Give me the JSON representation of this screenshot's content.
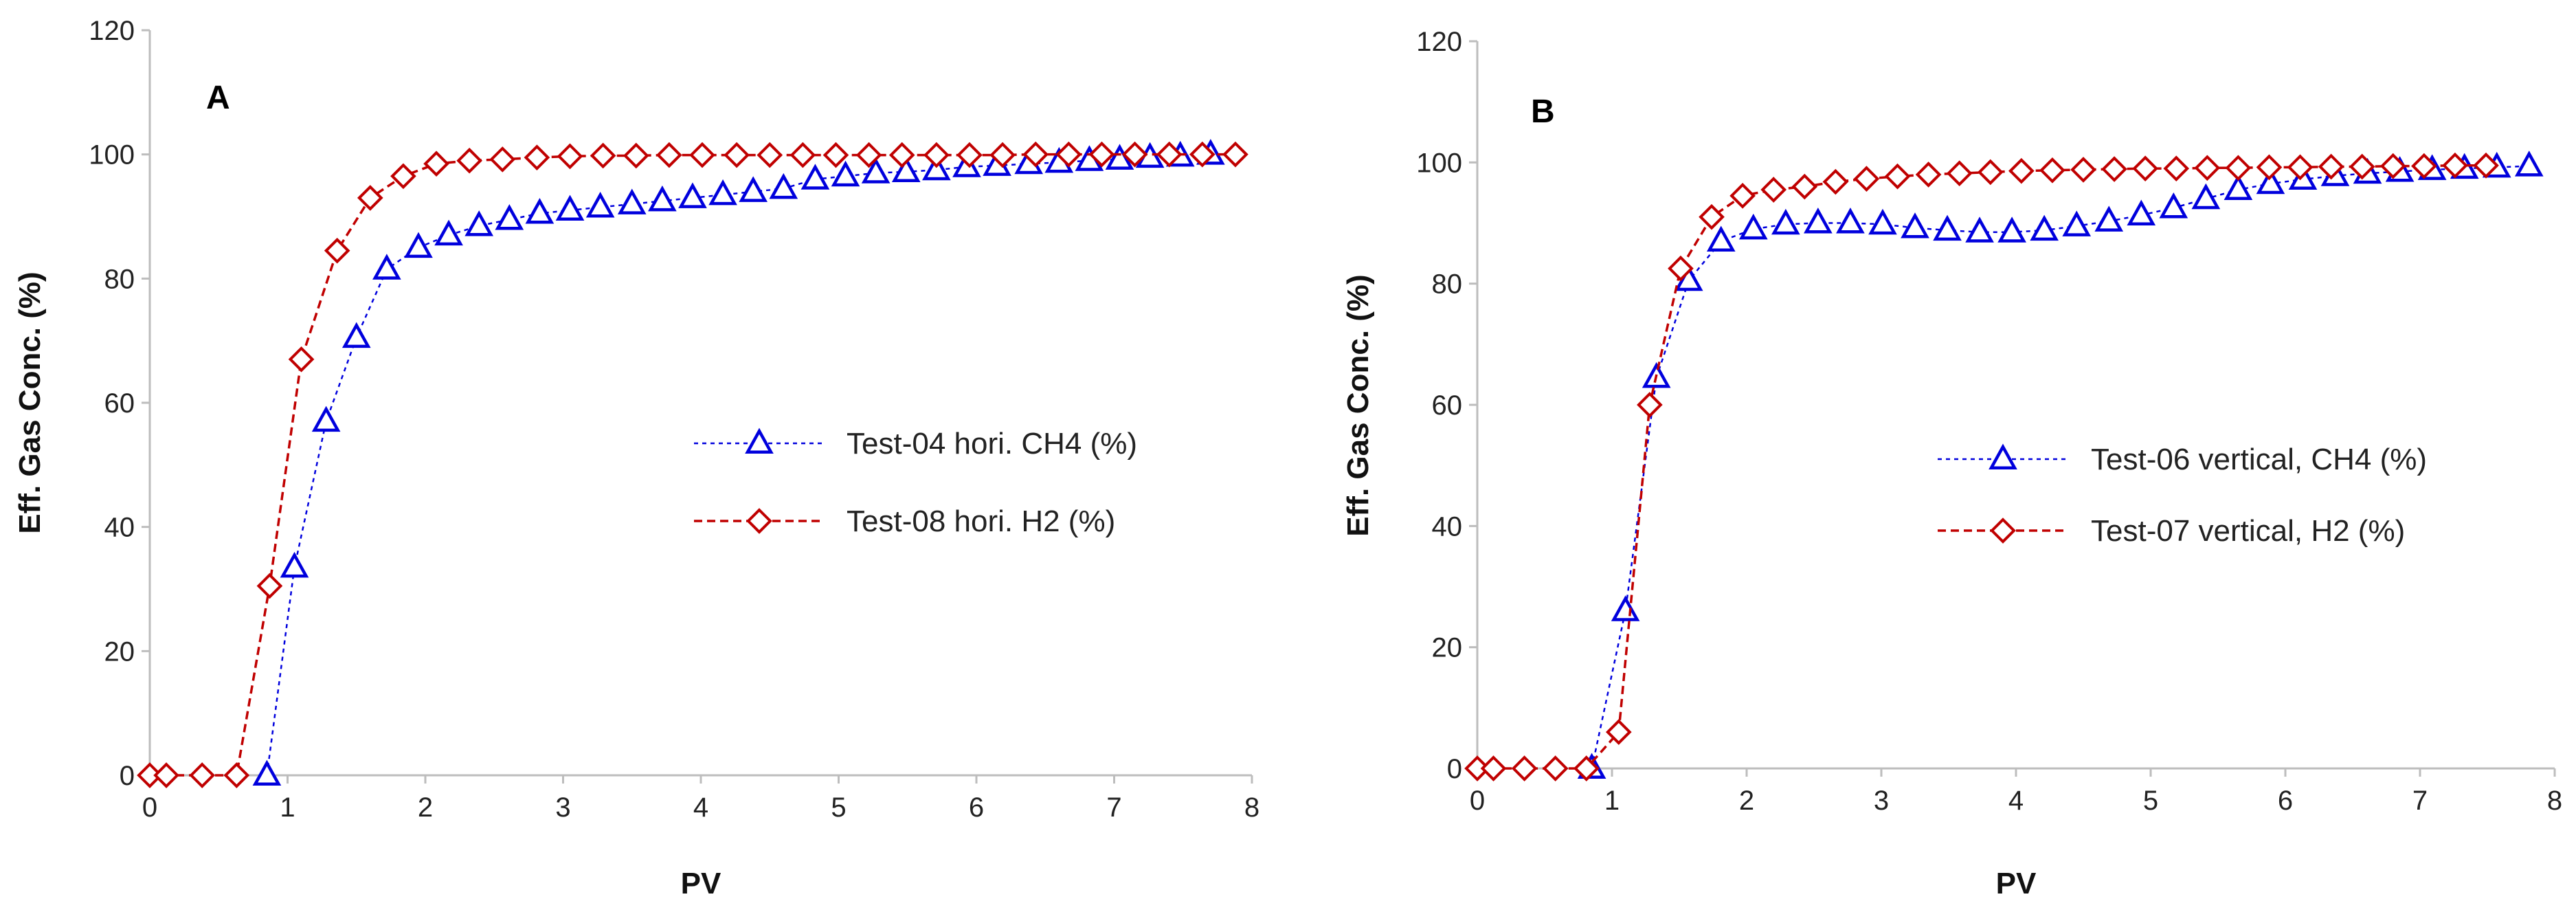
{
  "chart_data": [
    {
      "type": "line",
      "panel_label": "A",
      "xlabel": "PV",
      "ylabel": "Eff. Gas Conc. (%)",
      "xlim": [
        0,
        8
      ],
      "ylim": [
        0,
        120
      ],
      "xticks": [
        "0",
        "1",
        "2",
        "3",
        "4",
        "5",
        "6",
        "7",
        "8"
      ],
      "yticks": [
        "0",
        "20",
        "40",
        "60",
        "80",
        "100",
        "120"
      ],
      "legend_position": "center-right",
      "series": [
        {
          "name": "Test-04 hori. CH4 (%)",
          "color": "#0000dd",
          "marker": "triangle",
          "x": [
            0.85,
            1.05,
            1.28,
            1.5,
            1.72,
            1.95,
            2.17,
            2.39,
            2.61,
            2.83,
            3.05,
            3.27,
            3.5,
            3.72,
            3.94,
            4.16,
            4.38,
            4.6,
            4.83,
            5.05,
            5.27,
            5.49,
            5.71,
            5.93,
            6.15,
            6.38,
            6.6,
            6.82,
            7.04,
            7.26,
            7.48,
            7.7
          ],
          "y": [
            0,
            33.5,
            57,
            70.5,
            81.5,
            85,
            87,
            88.5,
            89.5,
            90.5,
            91,
            91.5,
            92,
            92.5,
            93,
            93.5,
            94,
            94.5,
            96,
            96.5,
            97,
            97.2,
            97.5,
            98,
            98.2,
            98.5,
            98.7,
            99,
            99.2,
            99.5,
            99.7,
            100
          ]
        },
        {
          "name": "Test-08 hori. H2 (%)",
          "color": "#c00000",
          "marker": "diamond",
          "x": [
            0,
            0.12,
            0.38,
            0.63,
            0.87,
            1.1,
            1.36,
            1.6,
            1.84,
            2.08,
            2.32,
            2.56,
            2.81,
            3.05,
            3.29,
            3.53,
            3.77,
            4.01,
            4.26,
            4.5,
            4.74,
            4.98,
            5.22,
            5.46,
            5.71,
            5.95,
            6.19,
            6.43,
            6.67,
            6.91,
            7.15,
            7.4,
            7.64,
            7.88
          ],
          "y": [
            0,
            0,
            0,
            0,
            30.5,
            67,
            84.5,
            93,
            96.5,
            98.5,
            99,
            99.2,
            99.5,
            99.7,
            99.8,
            99.8,
            99.9,
            99.9,
            99.9,
            99.9,
            99.9,
            99.9,
            99.9,
            99.9,
            99.9,
            99.9,
            99.9,
            100,
            100,
            100,
            100,
            100,
            100,
            100
          ]
        }
      ]
    },
    {
      "type": "line",
      "panel_label": "B",
      "xlabel": "PV",
      "ylabel": "Eff. Gas Conc. (%)",
      "xlim": [
        0,
        8
      ],
      "ylim": [
        0,
        120
      ],
      "xticks": [
        "0",
        "1",
        "2",
        "3",
        "4",
        "5",
        "6",
        "7",
        "8"
      ],
      "yticks": [
        "0",
        "20",
        "40",
        "60",
        "80",
        "100",
        "120"
      ],
      "legend_position": "center-right",
      "series": [
        {
          "name": "Test-06 vertical, CH4 (%)",
          "color": "#0000dd",
          "marker": "triangle",
          "x": [
            0.85,
            1.1,
            1.33,
            1.57,
            1.81,
            2.05,
            2.29,
            2.53,
            2.77,
            3.01,
            3.25,
            3.49,
            3.73,
            3.97,
            4.21,
            4.45,
            4.69,
            4.93,
            5.17,
            5.41,
            5.65,
            5.89,
            6.13,
            6.37,
            6.61,
            6.85,
            7.09,
            7.33,
            7.57,
            7.81
          ],
          "y": [
            0,
            26,
            64.5,
            80.5,
            87,
            89,
            89.8,
            90,
            90,
            89.8,
            89.2,
            88.8,
            88.5,
            88.5,
            88.8,
            89.5,
            90.3,
            91.3,
            92.5,
            94,
            95.5,
            96.5,
            97.2,
            97.8,
            98.2,
            98.5,
            98.8,
            99,
            99.2,
            99.4
          ]
        },
        {
          "name": "Test-07 vertical, H2 (%)",
          "color": "#c00000",
          "marker": "diamond",
          "x": [
            0,
            0.12,
            0.35,
            0.58,
            0.81,
            1.05,
            1.28,
            1.51,
            1.74,
            1.97,
            2.2,
            2.43,
            2.66,
            2.89,
            3.12,
            3.35,
            3.58,
            3.81,
            4.04,
            4.27,
            4.5,
            4.73,
            4.96,
            5.19,
            5.42,
            5.65,
            5.88,
            6.11,
            6.34,
            6.57,
            6.8,
            7.03,
            7.26,
            7.49
          ],
          "y": [
            0,
            0,
            0,
            0,
            0,
            6,
            60,
            82.5,
            91,
            94.5,
            95.5,
            96,
            96.8,
            97.3,
            97.7,
            98,
            98.2,
            98.4,
            98.6,
            98.7,
            98.8,
            98.9,
            99,
            99,
            99.1,
            99.1,
            99.2,
            99.2,
            99.3,
            99.3,
            99.4,
            99.4,
            99.5,
            99.5
          ]
        }
      ]
    }
  ]
}
